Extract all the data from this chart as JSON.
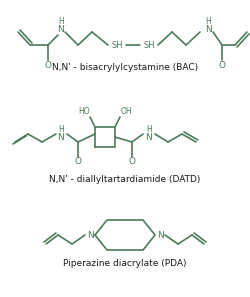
{
  "color": "#4a7c59",
  "bg_color": "#ffffff",
  "label1": "N,Nʹ - bisacrylylcystamine (BAC)",
  "label2": "N,Nʹ - diallyltartardiamide (DATD)",
  "label3": "Piperazine diacrylate (PDA)",
  "label_fontsize": 6.5,
  "label_color": "#1a1a1a"
}
